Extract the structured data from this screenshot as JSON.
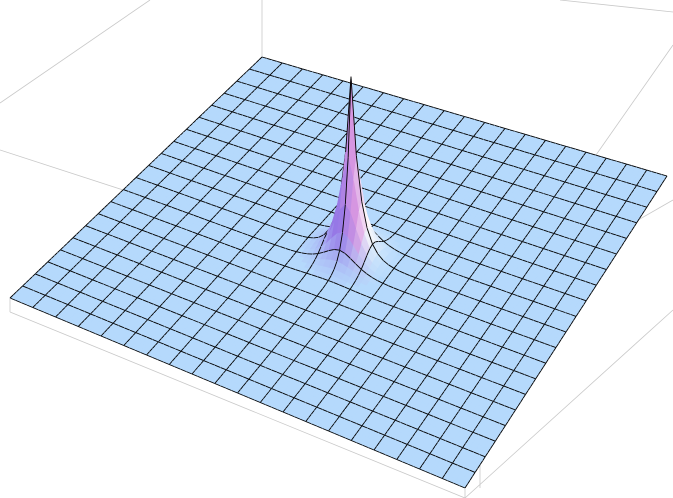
{
  "chart_data": {
    "type": "surface",
    "color": "#b5d9fc"
  }
}
